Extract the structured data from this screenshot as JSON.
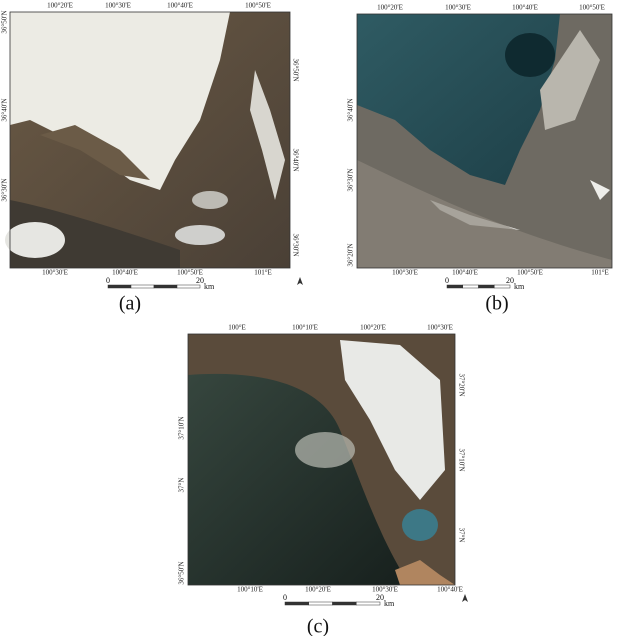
{
  "panels": [
    {
      "caption": "(a)",
      "top_labels": [
        "100°20'E",
        "100°30'E",
        "100°40'E",
        "100°50'E"
      ],
      "bottom_labels": [
        "100°30'E",
        "100°40'E",
        "100°50'E",
        "101°E"
      ],
      "left_labels": [
        "36°50'N",
        "36°40'N",
        "36°30'N"
      ],
      "right_labels": [
        "36°50'N",
        "36°40'N",
        "36°30'N"
      ],
      "scale": {
        "start": 0,
        "end": 20,
        "unit": "km"
      }
    },
    {
      "caption": "(b)",
      "top_labels": [
        "100°20'E",
        "100°30'E",
        "100°40'E",
        "100°50'E"
      ],
      "bottom_labels": [
        "100°30'E",
        "100°40'E",
        "100°50'E",
        "101°E"
      ],
      "left_labels": [
        "36°40'N",
        "36°30'N",
        "36°20'N"
      ],
      "right_labels": [],
      "scale": {
        "start": 0,
        "end": 20,
        "unit": "km"
      }
    },
    {
      "caption": "(c)",
      "top_labels": [
        "100°E",
        "100°10'E",
        "100°20'E",
        "100°30'E"
      ],
      "bottom_labels": [
        "100°10'E",
        "100°20'E",
        "100°30'E",
        "100°40'E"
      ],
      "left_labels": [
        "37°10'N",
        "37°N",
        "36°50'N"
      ],
      "right_labels": [
        "37°20'N",
        "37°10'N",
        "37°N"
      ],
      "scale": {
        "start": 0,
        "end": 20,
        "unit": "km"
      }
    }
  ]
}
